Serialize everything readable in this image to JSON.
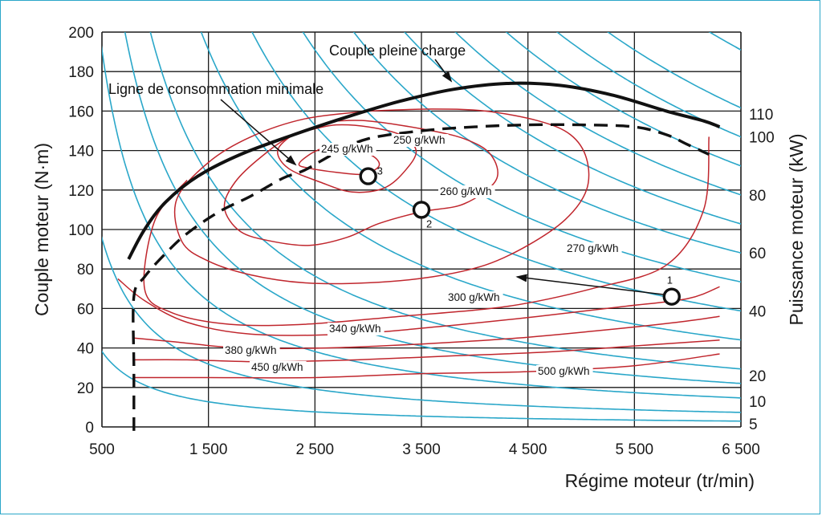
{
  "chart_data": {
    "type": "line",
    "xlabel": "Régime moteur (tr/min)",
    "ylabel": "Couple moteur (N·m)",
    "y2label": "Puissance moteur (kW)",
    "xlim": [
      500,
      6500
    ],
    "ylim": [
      0,
      200
    ],
    "x_ticks": [
      "500",
      "1 500",
      "2 500",
      "3 500",
      "4 500",
      "5 500",
      "6 500"
    ],
    "y_ticks": [
      "0",
      "20",
      "40",
      "60",
      "80",
      "100",
      "120",
      "140",
      "160",
      "180",
      "200"
    ],
    "grid": true,
    "full_load_torque": {
      "name": "Couple pleine charge",
      "x": [
        750,
        900,
        1100,
        1400,
        1800,
        2300,
        2800,
        3300,
        3800,
        4300,
        4800,
        5300,
        5800,
        6150,
        6300
      ],
      "y": [
        85,
        100,
        114,
        127,
        138,
        148,
        157,
        165,
        171,
        174,
        173,
        168,
        160,
        155,
        152
      ]
    },
    "min_consumption_line": {
      "name": "Ligne de consommation minimale",
      "x": [
        800,
        800,
        800,
        900,
        1100,
        1300,
        1600,
        1900,
        2200,
        2400,
        2700,
        3000,
        3500,
        4000,
        4500,
        5000,
        5500,
        5800,
        6000,
        6200
      ],
      "y": [
        -2,
        30,
        66,
        76,
        88,
        98,
        109,
        117,
        126,
        130,
        139,
        146,
        150,
        152,
        153,
        153,
        152,
        148,
        143,
        138
      ]
    },
    "consumption_contours": [
      {
        "label": "245 g/kWh",
        "x": [
          2600,
          2450,
          2350,
          2450,
          2700,
          2950,
          3100,
          3050,
          2850,
          2600
        ],
        "y": [
          142,
          138,
          133,
          131,
          129,
          128,
          132,
          137,
          141,
          142
        ]
      },
      {
        "label": "250 g/kWh",
        "x": [
          2500,
          2300,
          2150,
          2250,
          2550,
          2850,
          3150,
          3350,
          3450,
          3300,
          3000,
          2700,
          2500
        ],
        "y": [
          151,
          148,
          140,
          131,
          124,
          119,
          121,
          130,
          140,
          148,
          152,
          153,
          151
        ]
      },
      {
        "label": "260 g/kWh",
        "x": [
          2700,
          2300,
          2000,
          1750,
          1650,
          1800,
          2100,
          2450,
          2800,
          3100,
          3500,
          3900,
          4200,
          4150,
          3900,
          3500,
          3000,
          2700
        ],
        "y": [
          155,
          148,
          137,
          124,
          111,
          99,
          94,
          92,
          96,
          103,
          109,
          113,
          125,
          138,
          146,
          151,
          155,
          155
        ]
      },
      {
        "label": "270 g/kWh",
        "x": [
          3000,
          2400,
          1900,
          1500,
          1200,
          1250,
          1500,
          1900,
          2400,
          3000,
          3600,
          4100,
          4500,
          4850,
          5050,
          5050,
          4900,
          4600,
          4100,
          3600,
          3000
        ],
        "y": [
          160,
          156,
          147,
          134,
          115,
          94,
          84,
          77,
          73,
          73,
          76,
          82,
          92,
          105,
          120,
          136,
          148,
          155,
          160,
          161,
          160
        ]
      },
      {
        "label": "300 g/kWh",
        "x": [
          1300,
          1000,
          900,
          1150,
          1700,
          2400,
          3300,
          4300,
          5100,
          5800,
          6150,
          6200
        ],
        "y": [
          125,
          105,
          70,
          58,
          52,
          52,
          56,
          61,
          70,
          82,
          110,
          147
        ]
      },
      {
        "label": "340 g/kWh",
        "x": [
          650,
          900,
          1300,
          1900,
          2800,
          3700,
          4600,
          5400,
          6000,
          6300
        ],
        "y": [
          75,
          64,
          53,
          47,
          47,
          51,
          56,
          61,
          65,
          71
        ]
      },
      {
        "label": "380 g/kWh",
        "x": [
          800,
          1200,
          1800,
          2600,
          3500,
          4400,
          5200,
          5900,
          6300
        ],
        "y": [
          45,
          43,
          40,
          40,
          42,
          45,
          49,
          53,
          56
        ]
      },
      {
        "label": "450 g/kWh",
        "x": [
          800,
          1300,
          2000,
          2900,
          3800,
          4700,
          5500,
          6300
        ],
        "y": [
          34,
          34,
          33,
          34,
          36,
          38,
          41,
          44
        ]
      },
      {
        "label": "500 g/kWh",
        "x": [
          800,
          1500,
          2500,
          3500,
          4500,
          5500,
          6300
        ],
        "y": [
          25,
          25,
          25,
          27,
          28,
          31,
          37
        ]
      }
    ],
    "power_hyperbolas_kw": [
      5,
      10,
      20,
      40,
      60,
      80,
      100,
      110
    ],
    "power_hyperbolas_extra_kw": [
      2,
      15,
      30,
      50,
      70,
      90,
      130,
      150
    ],
    "power_axis_ticks": [
      "5",
      "10",
      "20",
      "40",
      "60",
      "80",
      "100",
      "110"
    ],
    "operating_points": [
      {
        "label": "1",
        "x": 5850,
        "y": 66
      },
      {
        "label": "2",
        "x": 3500,
        "y": 110
      },
      {
        "label": "3",
        "x": 3000,
        "y": 127
      }
    ],
    "shift_arrow": {
      "from": [
        5780,
        67
      ],
      "to": [
        4400,
        76
      ]
    },
    "annotations": [
      {
        "text": "Couple pleine charge"
      },
      {
        "text": "Ligne de consommation minimale"
      }
    ]
  },
  "colors": {
    "grid": "#1a1a1a",
    "power_curves": "#2aa7c9",
    "contours": "#c0262d",
    "full_load": "#111111",
    "min_line": "#111111",
    "frame": "#2aa7c9"
  }
}
